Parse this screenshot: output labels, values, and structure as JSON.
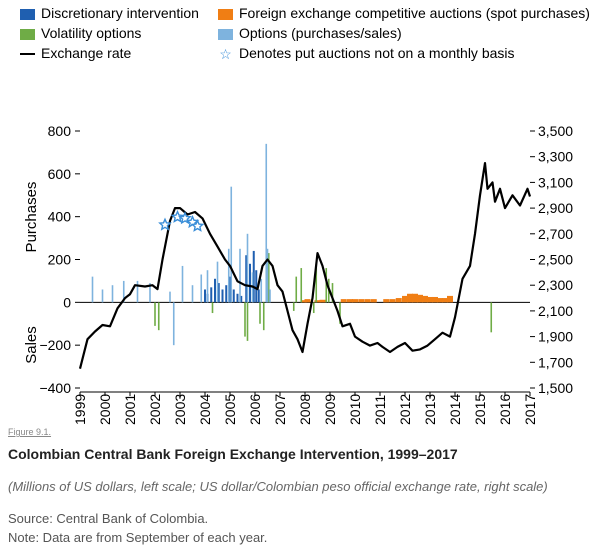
{
  "figure_label": "Figure 9.1.",
  "caption": {
    "title": "Colombian Central Bank Foreign Exchange Intervention, 1999–2017",
    "subtitle": "(Millions of US dollars, left scale; US dollar/Colombian peso official exchange rate, right scale)",
    "source": "Source: Central Bank of Colombia.",
    "note": "Note: Data are from September of each year."
  },
  "legend": [
    {
      "label": "Discretionary intervention",
      "color": "#1f5fb0",
      "kind": "box"
    },
    {
      "label": "Foreign exchange competitive auctions (spot purchases)",
      "color": "#f07e14",
      "kind": "box"
    },
    {
      "label": "Volatility options",
      "color": "#6fac46",
      "kind": "box"
    },
    {
      "label": "Options (purchases/sales)",
      "color": "#7eb3de",
      "kind": "box"
    },
    {
      "label": "Exchange rate",
      "color": "#000000",
      "kind": "line"
    },
    {
      "label": "Denotes put auctions not on a monthly basis",
      "color": "#3a8ed8",
      "kind": "star"
    }
  ],
  "chart_data": {
    "type": "bar",
    "left_axis": {
      "label_top": "Purchases",
      "label_bottom": "Sales",
      "range": [
        -400,
        800
      ],
      "ticks": [
        "−400",
        "−200",
        "0",
        "200",
        "400",
        "600",
        "800"
      ]
    },
    "right_axis": {
      "range": [
        1500,
        3500
      ],
      "ticks": [
        "1,500",
        "1,700",
        "1,900",
        "2,100",
        "2,300",
        "2,500",
        "2,700",
        "2,900",
        "3,100",
        "3,300",
        "3,500"
      ]
    },
    "x_ticks": [
      "1999",
      "2000",
      "2001",
      "2002",
      "2003",
      "2004",
      "2005",
      "2006",
      "2007",
      "2008",
      "2009",
      "2010",
      "2011",
      "2012",
      "2013",
      "2014",
      "2015",
      "2016",
      "2017"
    ],
    "x_range": [
      1999,
      2017
    ],
    "exchange_rate": [
      [
        1999.0,
        1650
      ],
      [
        1999.3,
        1880
      ],
      [
        1999.6,
        1940
      ],
      [
        1999.9,
        1990
      ],
      [
        2000.2,
        1980
      ],
      [
        2000.5,
        2120
      ],
      [
        2000.8,
        2200
      ],
      [
        2001.0,
        2230
      ],
      [
        2001.2,
        2300
      ],
      [
        2001.6,
        2290
      ],
      [
        2001.9,
        2300
      ],
      [
        2002.1,
        2270
      ],
      [
        2002.3,
        2500
      ],
      [
        2002.6,
        2800
      ],
      [
        2002.8,
        2900
      ],
      [
        2003.0,
        2900
      ],
      [
        2003.3,
        2850
      ],
      [
        2003.6,
        2870
      ],
      [
        2003.9,
        2820
      ],
      [
        2004.2,
        2700
      ],
      [
        2004.5,
        2600
      ],
      [
        2004.8,
        2500
      ],
      [
        2005.0,
        2450
      ],
      [
        2005.3,
        2330
      ],
      [
        2005.6,
        2300
      ],
      [
        2005.9,
        2290
      ],
      [
        2006.1,
        2270
      ],
      [
        2006.3,
        2450
      ],
      [
        2006.5,
        2500
      ],
      [
        2006.7,
        2450
      ],
      [
        2006.9,
        2300
      ],
      [
        2007.1,
        2250
      ],
      [
        2007.3,
        2100
      ],
      [
        2007.5,
        1950
      ],
      [
        2007.7,
        1880
      ],
      [
        2007.9,
        1780
      ],
      [
        2008.1,
        2000
      ],
      [
        2008.3,
        2200
      ],
      [
        2008.5,
        2550
      ],
      [
        2008.7,
        2450
      ],
      [
        2008.9,
        2300
      ],
      [
        2009.1,
        2200
      ],
      [
        2009.3,
        2100
      ],
      [
        2009.5,
        1980
      ],
      [
        2009.8,
        2000
      ],
      [
        2010.0,
        1900
      ],
      [
        2010.3,
        1860
      ],
      [
        2010.6,
        1830
      ],
      [
        2010.9,
        1850
      ],
      [
        2011.1,
        1820
      ],
      [
        2011.4,
        1780
      ],
      [
        2011.7,
        1820
      ],
      [
        2012.0,
        1850
      ],
      [
        2012.3,
        1790
      ],
      [
        2012.6,
        1800
      ],
      [
        2012.9,
        1830
      ],
      [
        2013.2,
        1880
      ],
      [
        2013.5,
        1930
      ],
      [
        2013.8,
        1900
      ],
      [
        2014.0,
        2050
      ],
      [
        2014.3,
        2350
      ],
      [
        2014.6,
        2450
      ],
      [
        2014.8,
        2700
      ],
      [
        2015.0,
        3000
      ],
      [
        2015.2,
        3250
      ],
      [
        2015.3,
        3050
      ],
      [
        2015.5,
        3100
      ],
      [
        2015.6,
        2950
      ],
      [
        2015.8,
        3050
      ],
      [
        2016.0,
        2900
      ],
      [
        2016.3,
        3000
      ],
      [
        2016.6,
        2920
      ],
      [
        2016.9,
        3050
      ],
      [
        2017.0,
        2990
      ]
    ],
    "put_auction_stars": [
      [
        2002.4,
        2770
      ],
      [
        2002.9,
        2830
      ],
      [
        2003.2,
        2820
      ],
      [
        2003.5,
        2790
      ],
      [
        2003.7,
        2760
      ]
    ],
    "bars": {
      "discretionary": [
        [
          2004.0,
          60
        ],
        [
          2004.1,
          40
        ],
        [
          2004.25,
          70
        ],
        [
          2004.4,
          110
        ],
        [
          2004.55,
          90
        ],
        [
          2004.7,
          60
        ],
        [
          2004.85,
          80
        ],
        [
          2005.0,
          120
        ],
        [
          2005.15,
          60
        ],
        [
          2005.3,
          40
        ],
        [
          2005.45,
          30
        ],
        [
          2005.65,
          220
        ],
        [
          2005.8,
          180
        ],
        [
          2005.95,
          240
        ],
        [
          2006.05,
          150
        ],
        [
          2006.15,
          60
        ]
      ],
      "fx_auctions": [
        [
          2007.95,
          10
        ],
        [
          2008.1,
          15
        ],
        [
          2008.5,
          10
        ],
        [
          2008.7,
          12
        ],
        [
          2009.55,
          15
        ],
        [
          2009.8,
          15
        ],
        [
          2010.0,
          15
        ],
        [
          2010.25,
          15
        ],
        [
          2010.5,
          15
        ],
        [
          2010.75,
          15
        ],
        [
          2011.25,
          15
        ],
        [
          2011.5,
          15
        ],
        [
          2011.75,
          20
        ],
        [
          2012.0,
          30
        ],
        [
          2012.2,
          40
        ],
        [
          2012.4,
          40
        ],
        [
          2012.6,
          35
        ],
        [
          2012.8,
          30
        ],
        [
          2013.0,
          25
        ],
        [
          2013.2,
          25
        ],
        [
          2013.4,
          20
        ],
        [
          2013.6,
          20
        ],
        [
          2013.8,
          30
        ]
      ],
      "volatility_options": [
        [
          2002.0,
          -110
        ],
        [
          2002.15,
          -130
        ],
        [
          2004.3,
          -50
        ],
        [
          2005.6,
          -160
        ],
        [
          2005.7,
          -180
        ],
        [
          2006.2,
          -100
        ],
        [
          2006.35,
          -130
        ],
        [
          2006.55,
          230
        ],
        [
          2007.55,
          -40
        ],
        [
          2007.65,
          120
        ],
        [
          2007.85,
          160
        ],
        [
          2008.35,
          -50
        ],
        [
          2008.45,
          180
        ],
        [
          2008.85,
          160
        ],
        [
          2008.95,
          110
        ],
        [
          2009.1,
          90
        ],
        [
          2009.4,
          -100
        ],
        [
          2015.45,
          -140
        ]
      ],
      "options_ps": [
        [
          1999.5,
          120
        ],
        [
          1999.9,
          60
        ],
        [
          2000.3,
          80
        ],
        [
          2000.75,
          100
        ],
        [
          2001.3,
          100
        ],
        [
          2001.8,
          90
        ],
        [
          2002.6,
          50
        ],
        [
          2002.75,
          -200
        ],
        [
          2003.1,
          170
        ],
        [
          2003.5,
          80
        ],
        [
          2003.85,
          130
        ],
        [
          2004.1,
          150
        ],
        [
          2004.5,
          190
        ],
        [
          2004.95,
          250
        ],
        [
          2005.05,
          540
        ],
        [
          2005.4,
          250
        ],
        [
          2005.7,
          320
        ],
        [
          2005.9,
          140
        ],
        [
          2006.25,
          110
        ],
        [
          2006.45,
          740
        ],
        [
          2006.5,
          250
        ],
        [
          2006.6,
          60
        ]
      ]
    }
  }
}
